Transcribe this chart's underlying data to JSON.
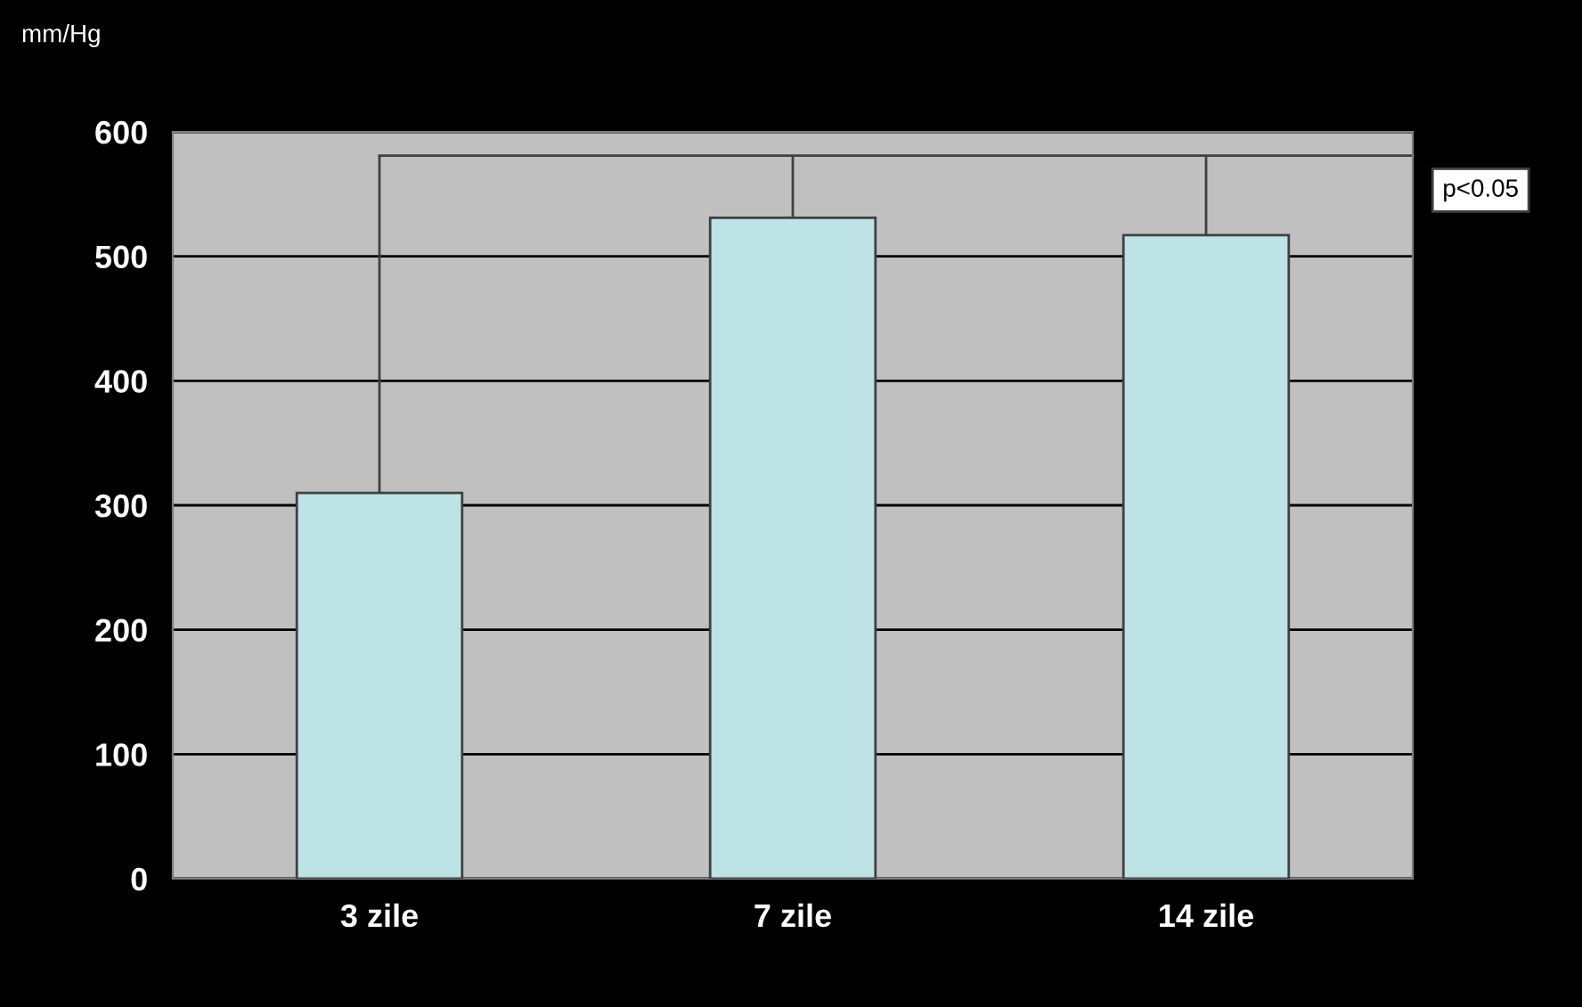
{
  "chart_data": {
    "type": "bar",
    "ylabel": "mm/Hg",
    "categories": [
      "3 zile",
      "7 zile",
      "14 zile"
    ],
    "values": [
      310,
      531,
      517
    ],
    "color": "#bde3e6",
    "ylim": [
      0,
      600
    ],
    "yticks": [
      0,
      100,
      200,
      300,
      400,
      500,
      600
    ],
    "grid": "y",
    "ref_lines": [
      {
        "axis": "y",
        "value": 581,
        "label": "p<0.05",
        "color": "#404040"
      }
    ]
  }
}
